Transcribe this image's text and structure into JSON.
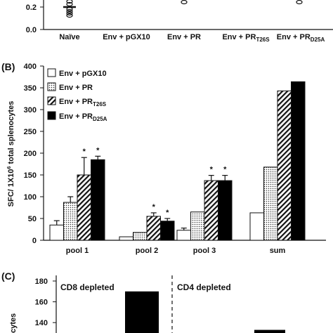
{
  "panel_a": {
    "y_ticks": [
      "0.2",
      "0.0"
    ],
    "categories": [
      "Naïve",
      "Env + pGX10",
      "Env + PR",
      "Env + PR<T26S>",
      "Env + PR<D25A>"
    ]
  },
  "panel_b": {
    "label": "(B)",
    "ylabel": "SFC/ 1X10^6 total splenocytes",
    "legend": [
      {
        "text": "Env + pGX10",
        "fill": "white"
      },
      {
        "text": "Env + PR",
        "fill": "dots"
      },
      {
        "text": "Env + PR<T26S>",
        "fill": "hatch"
      },
      {
        "text": "Env + PR<D25A>",
        "fill": "black"
      }
    ]
  },
  "panel_c": {
    "label": "(C)",
    "ylabel_fragment": "cytes",
    "left_title": "CD8 depleted",
    "right_title": "CD4 depleted",
    "y_ticks": [
      "180",
      "160",
      "140"
    ]
  },
  "chart_data": [
    {
      "type": "bar",
      "panel": "B",
      "categories": [
        "pool 1",
        "pool 2",
        "pool 3",
        "sum"
      ],
      "ylim": [
        0,
        400
      ],
      "yticks": [
        0,
        50,
        100,
        150,
        200,
        250,
        300,
        350,
        400
      ],
      "ylabel": "SFC/ 1X10^6 total splenocytes",
      "series": [
        {
          "name": "Env + pGX10",
          "fill": "white",
          "values": [
            35,
            8,
            23,
            63
          ],
          "errors": [
            10,
            0,
            5,
            0
          ]
        },
        {
          "name": "Env + PR",
          "fill": "dots",
          "values": [
            87,
            18,
            65,
            168
          ],
          "errors": [
            13,
            0,
            0,
            0
          ]
        },
        {
          "name": "Env + PR<T26S>",
          "fill": "hatch",
          "values": [
            150,
            55,
            137,
            343
          ],
          "errors": [
            40,
            8,
            12,
            0
          ]
        },
        {
          "name": "Env + PR<D25A>",
          "fill": "black",
          "values": [
            185,
            44,
            137,
            364
          ],
          "errors": [
            8,
            6,
            12,
            0
          ]
        }
      ],
      "asterisks": [
        {
          "category": 0,
          "series": 2
        },
        {
          "category": 0,
          "series": 3
        },
        {
          "category": 1,
          "series": 2
        },
        {
          "category": 1,
          "series": 3
        },
        {
          "category": 2,
          "series": 2
        },
        {
          "category": 2,
          "series": 3
        }
      ]
    },
    {
      "type": "bar",
      "panel": "C",
      "ylim_visible": [
        130,
        180
      ],
      "yticks": [
        140,
        160,
        180
      ],
      "series": [
        {
          "name": "CD8 depleted",
          "fill": "black",
          "values": [
            170
          ]
        },
        {
          "name": "CD4 depleted",
          "fill": "black",
          "values": [
            133
          ]
        }
      ]
    }
  ]
}
